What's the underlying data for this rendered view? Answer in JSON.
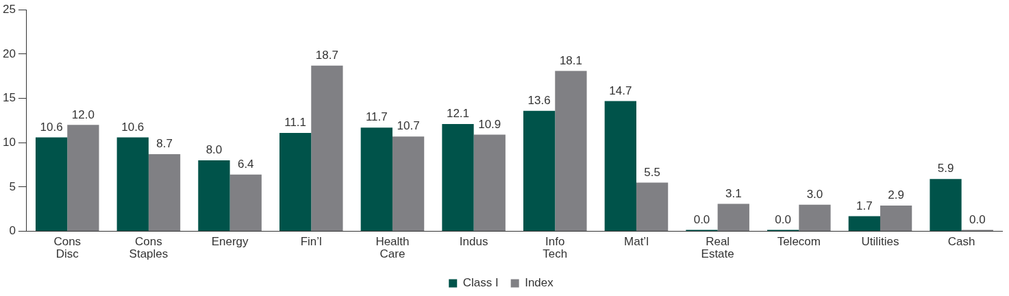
{
  "chart_data": {
    "type": "bar",
    "categories": [
      "Cons Disc",
      "Cons Staples",
      "Energy",
      "Fin’l",
      "Health Care",
      "Indus",
      "Info Tech",
      "Mat’l",
      "Real Estate",
      "Telecom",
      "Utilities",
      "Cash"
    ],
    "series": [
      {
        "name": "Class I",
        "color": "#00534a",
        "values": [
          10.6,
          10.6,
          8.0,
          11.1,
          11.7,
          12.1,
          13.6,
          14.7,
          0.0,
          0.0,
          1.7,
          5.9
        ],
        "value_labels": [
          "10.6",
          "10.6",
          "8.0",
          "11.1",
          "11.7",
          "12.1",
          "13.6",
          "14.7",
          "0.0",
          "0.0",
          "1.7",
          "5.9"
        ]
      },
      {
        "name": "Index",
        "color": "#808084",
        "values": [
          12.0,
          8.7,
          6.4,
          18.7,
          10.7,
          10.9,
          18.1,
          5.5,
          3.1,
          3.0,
          2.9,
          0.0
        ],
        "value_labels": [
          "12.0",
          "8.7",
          "6.4",
          "18.7",
          "10.7",
          "10.9",
          "18.1",
          "5.5",
          "3.1",
          "3.0",
          "2.9",
          "0.0"
        ]
      }
    ],
    "ylim": [
      0,
      25
    ],
    "yticks": [
      0,
      5,
      10,
      15,
      20,
      25
    ],
    "grid": false,
    "legend": "bottom"
  }
}
